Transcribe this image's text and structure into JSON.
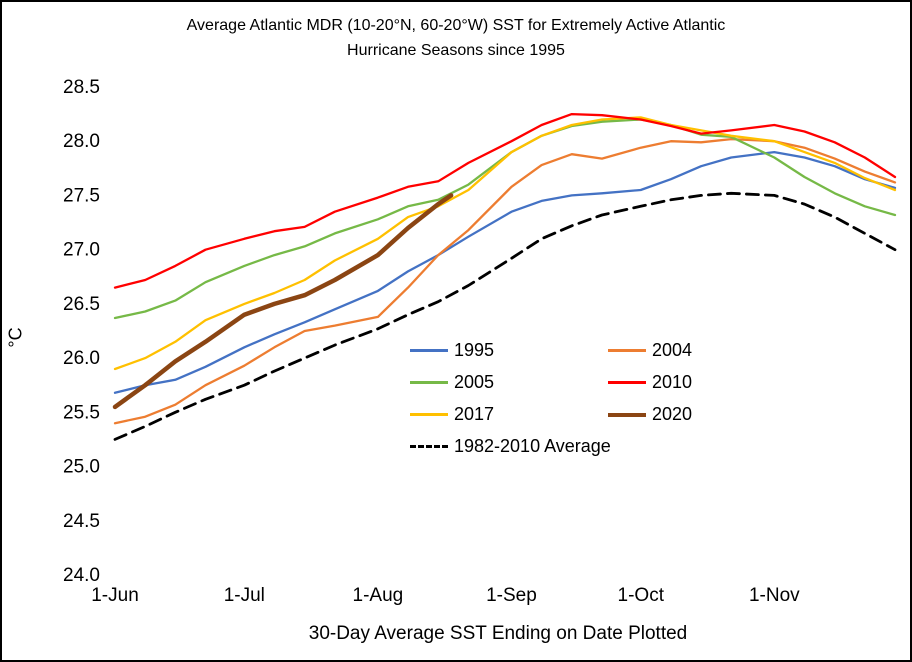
{
  "title": {
    "line1": "Average Atlantic MDR (10-20°N, 60-20°W) SST for Extremely Active Atlantic",
    "line2": "Hurricane Seasons since 1995"
  },
  "axes": {
    "y_unit": "°C",
    "x_title": "30-Day Average SST Ending on Date Plotted",
    "y_ticks": [
      "28.5",
      "28.0",
      "27.5",
      "27.0",
      "26.5",
      "26.0",
      "25.5",
      "25.0",
      "24.5",
      "24.0"
    ],
    "x_ticks": [
      {
        "label": "1-Jun",
        "day": 0
      },
      {
        "label": "1-Jul",
        "day": 30
      },
      {
        "label": "1-Aug",
        "day": 61
      },
      {
        "label": "1-Sep",
        "day": 92
      },
      {
        "label": "1-Oct",
        "day": 122
      },
      {
        "label": "1-Nov",
        "day": 153
      }
    ]
  },
  "chart_data": {
    "type": "line",
    "title": "Average Atlantic MDR (10-20°N, 60-20°W) SST for Extremely Active Atlantic Hurricane Seasons since 1995",
    "xlabel": "30-Day Average SST Ending on Date Plotted",
    "ylabel": "°C",
    "ylim": [
      24.0,
      28.5
    ],
    "x_max_day": 181,
    "x_unit": "days since 1-Jun",
    "legend_position": "center-bottom-inside",
    "grid": false,
    "draw_order": [
      6,
      0,
      1,
      2,
      4,
      3,
      5
    ],
    "series": [
      {
        "name": "1995",
        "color": "#4472C4",
        "width": 2.3,
        "x": [
          0,
          7,
          14,
          21,
          30,
          37,
          44,
          51,
          61,
          68,
          75,
          82,
          92,
          99,
          106,
          113,
          122,
          129,
          136,
          143,
          153,
          160,
          167,
          174,
          181
        ],
        "y": [
          25.68,
          25.75,
          25.8,
          25.92,
          26.1,
          26.22,
          26.33,
          26.45,
          26.62,
          26.8,
          26.95,
          27.12,
          27.35,
          27.45,
          27.5,
          27.52,
          27.55,
          27.65,
          27.77,
          27.85,
          27.9,
          27.85,
          27.77,
          27.65,
          27.57
        ]
      },
      {
        "name": "2004",
        "color": "#ED7D31",
        "width": 2.3,
        "x": [
          0,
          7,
          14,
          21,
          30,
          37,
          44,
          51,
          61,
          68,
          75,
          82,
          92,
          99,
          106,
          113,
          122,
          129,
          136,
          143,
          153,
          160,
          167,
          174,
          181
        ],
        "y": [
          25.4,
          25.46,
          25.57,
          25.75,
          25.93,
          26.1,
          26.25,
          26.3,
          26.38,
          26.65,
          26.95,
          27.18,
          27.58,
          27.78,
          27.88,
          27.84,
          27.94,
          28.0,
          27.99,
          28.02,
          28.0,
          27.94,
          27.84,
          27.72,
          27.62
        ]
      },
      {
        "name": "2005",
        "color": "#76B947",
        "width": 2.3,
        "x": [
          0,
          7,
          14,
          21,
          30,
          37,
          44,
          51,
          61,
          68,
          75,
          82,
          92,
          99,
          106,
          113,
          122,
          129,
          136,
          143,
          153,
          160,
          167,
          174,
          181
        ],
        "y": [
          26.37,
          26.43,
          26.53,
          26.7,
          26.85,
          26.95,
          27.03,
          27.15,
          27.28,
          27.4,
          27.46,
          27.6,
          27.9,
          28.05,
          28.14,
          28.18,
          28.2,
          28.15,
          28.06,
          28.04,
          27.85,
          27.67,
          27.52,
          27.4,
          27.32
        ]
      },
      {
        "name": "2010",
        "color": "#FF0000",
        "width": 2.3,
        "x": [
          0,
          7,
          14,
          21,
          30,
          37,
          44,
          51,
          61,
          68,
          75,
          82,
          92,
          99,
          106,
          113,
          122,
          129,
          136,
          143,
          153,
          160,
          167,
          174,
          181
        ],
        "y": [
          26.65,
          26.72,
          26.85,
          27.0,
          27.1,
          27.17,
          27.21,
          27.35,
          27.48,
          27.58,
          27.63,
          27.8,
          28.0,
          28.15,
          28.25,
          28.24,
          28.2,
          28.14,
          28.07,
          28.1,
          28.15,
          28.09,
          27.99,
          27.85,
          27.67
        ]
      },
      {
        "name": "2017",
        "color": "#FFC000",
        "width": 2.3,
        "x": [
          0,
          7,
          14,
          21,
          30,
          37,
          44,
          51,
          61,
          68,
          75,
          82,
          92,
          99,
          106,
          113,
          122,
          129,
          136,
          143,
          153,
          160,
          167,
          174,
          181
        ],
        "y": [
          25.9,
          26.0,
          26.15,
          26.35,
          26.5,
          26.6,
          26.72,
          26.9,
          27.1,
          27.3,
          27.4,
          27.55,
          27.9,
          28.05,
          28.15,
          28.2,
          28.22,
          28.15,
          28.1,
          28.05,
          28.0,
          27.9,
          27.8,
          27.66,
          27.55
        ]
      },
      {
        "name": "2020",
        "color": "#8B4513",
        "width": 4.5,
        "x": [
          0,
          7,
          14,
          21,
          30,
          37,
          44,
          51,
          61,
          68,
          75,
          78
        ],
        "y": [
          25.55,
          25.75,
          25.97,
          26.15,
          26.4,
          26.5,
          26.58,
          26.72,
          26.95,
          27.2,
          27.42,
          27.5
        ]
      },
      {
        "name": "1982-2010 Average",
        "color": "#000000",
        "width": 2.8,
        "dash": "12 7",
        "x": [
          0,
          7,
          14,
          21,
          30,
          37,
          44,
          51,
          61,
          68,
          75,
          82,
          92,
          99,
          106,
          113,
          122,
          129,
          136,
          143,
          153,
          160,
          167,
          174,
          181
        ],
        "y": [
          25.25,
          25.37,
          25.5,
          25.62,
          25.75,
          25.88,
          26.0,
          26.12,
          26.27,
          26.4,
          26.52,
          26.67,
          26.92,
          27.1,
          27.22,
          27.32,
          27.4,
          27.46,
          27.5,
          27.52,
          27.5,
          27.42,
          27.3,
          27.15,
          27.0
        ]
      }
    ]
  }
}
